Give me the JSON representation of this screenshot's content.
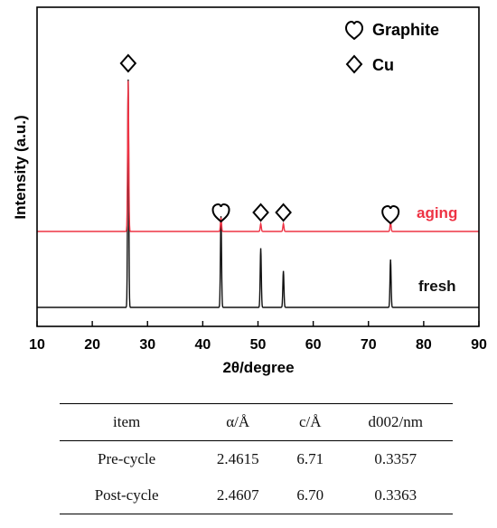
{
  "chart_data": {
    "type": "line",
    "title": "",
    "xlabel": "2θ/degree",
    "ylabel": "Intensity (a.u.)",
    "xlim": [
      10,
      90
    ],
    "xticks": [
      10,
      20,
      30,
      40,
      50,
      60,
      70,
      80,
      90
    ],
    "yticks_shown": false,
    "grid": false,
    "legend": {
      "placement": "top-right",
      "entries": [
        {
          "symbol": "heart",
          "label": "Graphite"
        },
        {
          "symbol": "diamond",
          "label": "Cu"
        }
      ]
    },
    "series": [
      {
        "name": "fresh",
        "color": "#111111",
        "peaks": [
          {
            "x": 26.5,
            "height": 1.0
          },
          {
            "x": 43.3,
            "height": 0.4
          },
          {
            "x": 50.5,
            "height": 0.26
          },
          {
            "x": 54.6,
            "height": 0.16
          },
          {
            "x": 74.0,
            "height": 0.21
          }
        ]
      },
      {
        "name": "aging",
        "color": "#ee3344",
        "peaks": [
          {
            "x": 26.5,
            "height": 0.98
          },
          {
            "x": 43.3,
            "height": 0.09
          },
          {
            "x": 50.5,
            "height": 0.05
          },
          {
            "x": 54.6,
            "height": 0.05
          },
          {
            "x": 74.0,
            "height": 0.06
          }
        ]
      }
    ],
    "annotations": [
      {
        "symbol": "diamond",
        "x": 26.5
      },
      {
        "symbol": "heart",
        "x": 43.3
      },
      {
        "symbol": "diamond",
        "x": 50.5
      },
      {
        "symbol": "diamond",
        "x": 54.6
      },
      {
        "symbol": "heart",
        "x": 74.0
      }
    ]
  },
  "table": {
    "headers": [
      "item",
      "α/Å",
      "c/Å",
      "d002/nm"
    ],
    "rows": [
      [
        "Pre-cycle",
        "2.4615",
        "6.71",
        "0.3357"
      ],
      [
        "Post-cycle",
        "2.4607",
        "6.70",
        "0.3363"
      ]
    ]
  }
}
